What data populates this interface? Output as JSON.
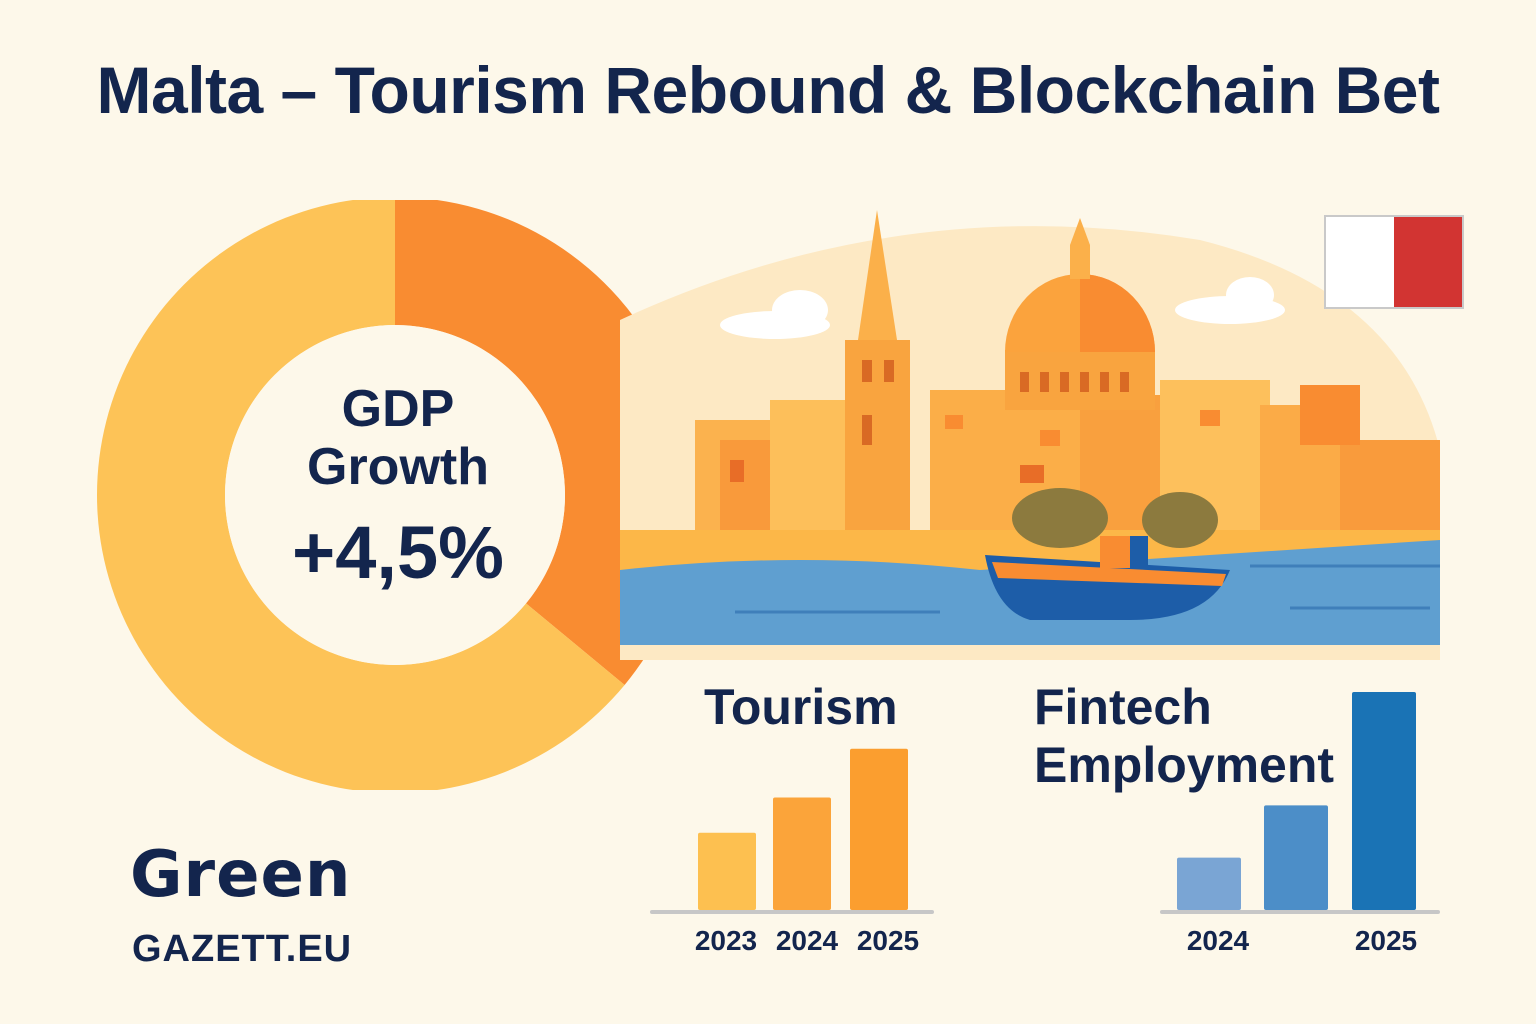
{
  "title": "Malta – Tourism Rebound & Blockchain Bet",
  "colors": {
    "navy": "#13254d",
    "orange_light": "#fdc357",
    "orange_dark": "#f98c31",
    "blue_light": "#7aa5d4",
    "blue_mid": "#4c8ec8",
    "blue_dark": "#1a73b5",
    "flag_red": "#d23432"
  },
  "gdp": {
    "label_line1": "GDP",
    "label_line2": "Growth",
    "value": "+4,5%"
  },
  "logo": {
    "main": "Green",
    "sub": "GAZETT.EU"
  },
  "chart_data": [
    {
      "type": "pie",
      "title": "GDP Growth",
      "slices": [
        {
          "value": 36,
          "color": "#f98c31"
        },
        {
          "value": 64,
          "color": "#fdc357"
        }
      ],
      "center_label": "+4,5%"
    },
    {
      "type": "bar",
      "title": "Tourism",
      "categories": [
        "2023",
        "2024",
        "2025"
      ],
      "values": [
        46,
        67,
        96
      ],
      "ylim": [
        0,
        100
      ],
      "colors": [
        "#fdc050",
        "#fba43a",
        "#fb9e2f"
      ]
    },
    {
      "type": "bar",
      "title_line1": "Fintech",
      "title_line2": "Employment",
      "categories": [
        "2024",
        "",
        "2025"
      ],
      "values": [
        24,
        48,
        100
      ],
      "ylim": [
        0,
        100
      ],
      "colors": [
        "#7aa5d4",
        "#4c8ec8",
        "#1a73b5"
      ]
    }
  ]
}
